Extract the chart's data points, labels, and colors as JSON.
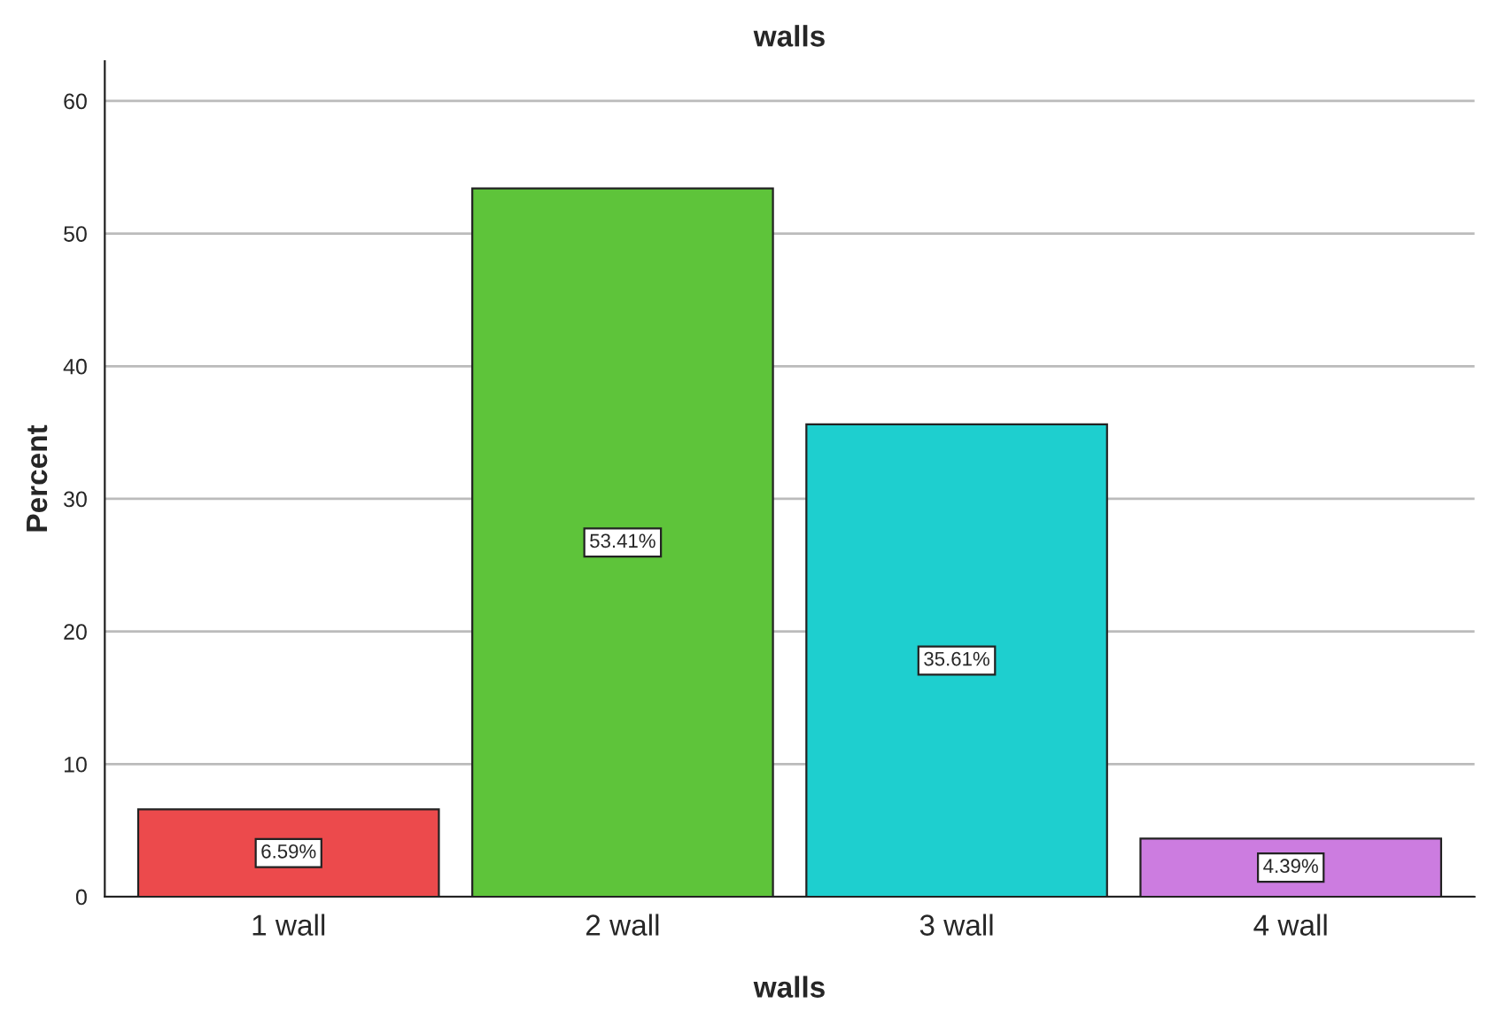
{
  "chart_data": {
    "type": "bar",
    "title": "walls",
    "xlabel": "walls",
    "ylabel": "Percent",
    "categories": [
      "1 wall",
      "2 wall",
      "3 wall",
      "4 wall"
    ],
    "values": [
      6.59,
      53.41,
      35.61,
      4.39
    ],
    "value_labels": [
      "6.59%",
      "53.41%",
      "35.61%",
      "4.39%"
    ],
    "colors": [
      "#ec4a4c",
      "#5ec43a",
      "#1ecfcf",
      "#cc7ce0"
    ],
    "ylim": [
      0,
      63
    ],
    "yticks": [
      0,
      10,
      20,
      30,
      40,
      50,
      60
    ],
    "grid": "y",
    "legend": false
  }
}
